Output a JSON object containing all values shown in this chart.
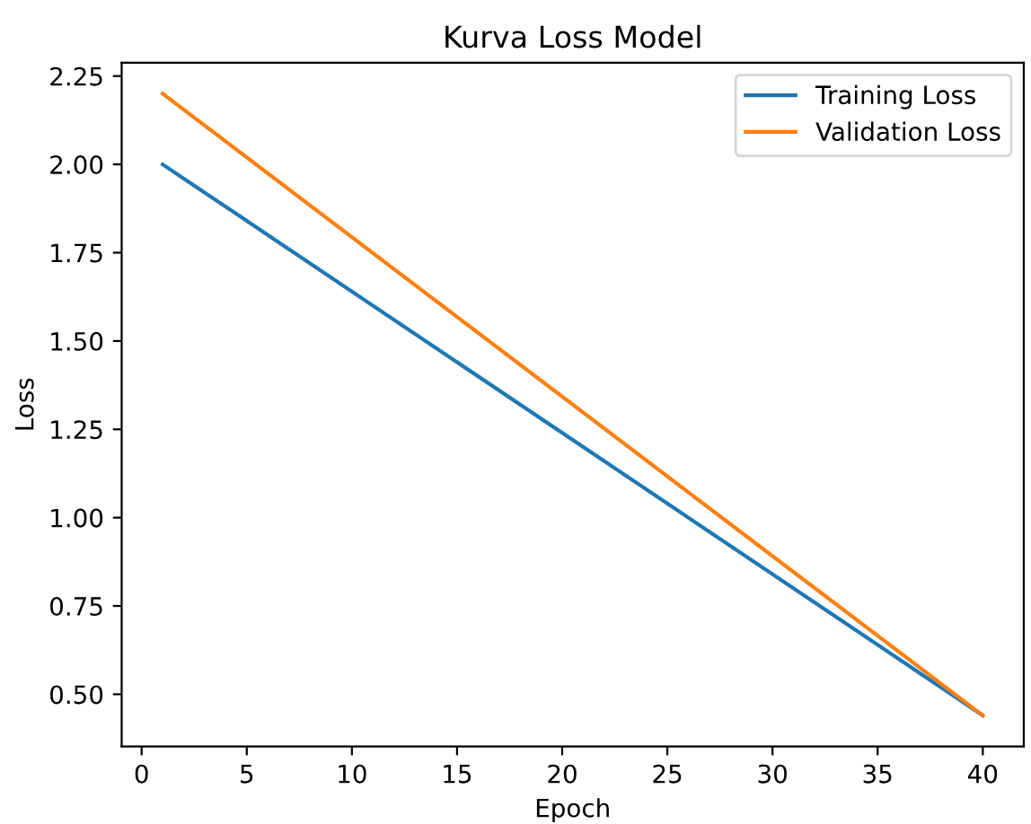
{
  "chart_data": {
    "type": "line",
    "title": "Kurva Loss Model",
    "xlabel": "Epoch",
    "ylabel": "Loss",
    "x": [
      1,
      40
    ],
    "series": [
      {
        "name": "Training Loss",
        "color": "#1f77b4",
        "values": [
          2.0,
          0.44
        ]
      },
      {
        "name": "Validation Loss",
        "color": "#ff7f0e",
        "values": [
          2.2,
          0.44
        ]
      }
    ],
    "xlim": [
      -0.95,
      41.95
    ],
    "ylim": [
      0.352,
      2.288
    ],
    "xticks": [
      0,
      5,
      10,
      15,
      20,
      25,
      30,
      35,
      40
    ],
    "yticks": [
      {
        "value": 0.5,
        "label": "0.50"
      },
      {
        "value": 0.75,
        "label": "0.75"
      },
      {
        "value": 1.0,
        "label": "1.00"
      },
      {
        "value": 1.25,
        "label": "1.25"
      },
      {
        "value": 1.5,
        "label": "1.50"
      },
      {
        "value": 1.75,
        "label": "1.75"
      },
      {
        "value": 2.0,
        "label": "2.00"
      },
      {
        "value": 2.25,
        "label": "2.25"
      }
    ],
    "grid": false,
    "legend": "top right"
  }
}
